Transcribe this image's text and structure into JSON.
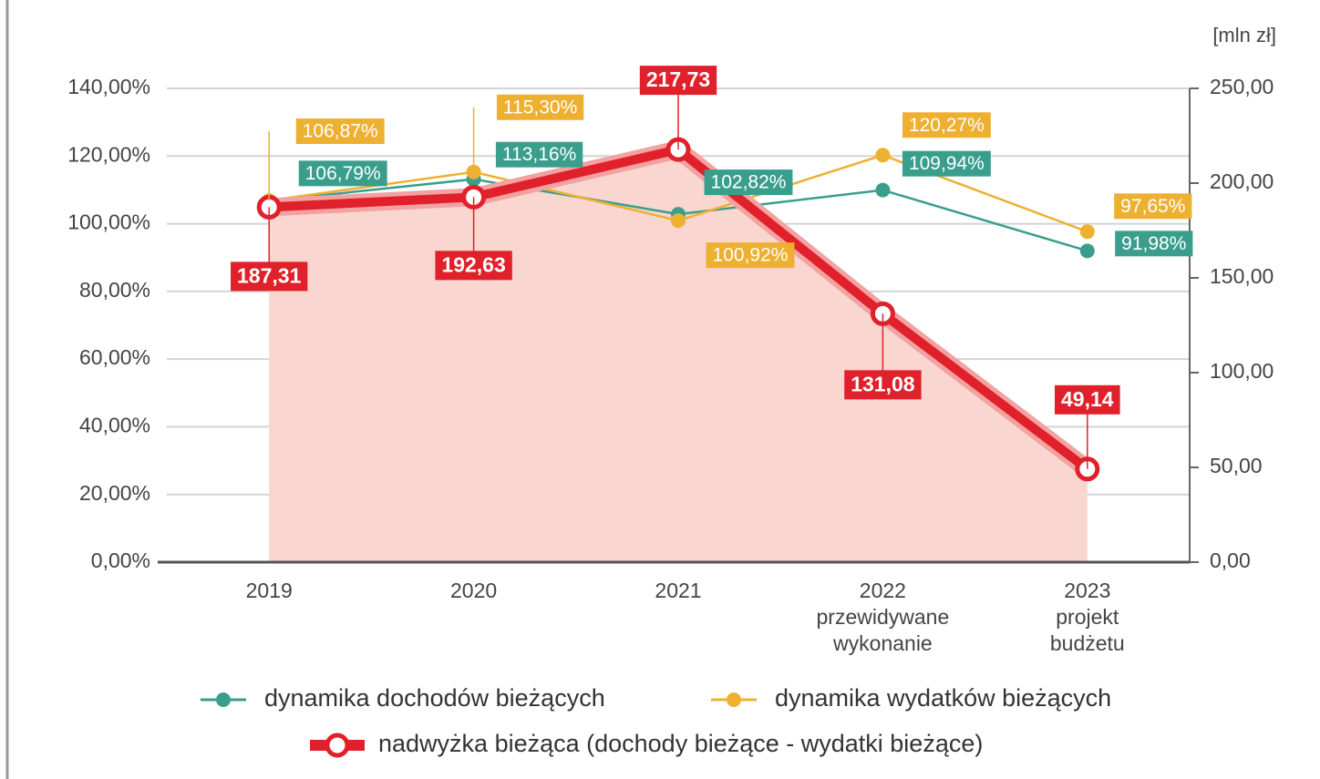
{
  "chart_data": {
    "type": "line",
    "y2label": "[mln zł]",
    "categories": [
      "2019",
      "2020",
      "2021",
      "2022\nprzewidywane\nwykonanie",
      "2023\nprojekt\nbudżetu"
    ],
    "ylim": [
      0,
      140
    ],
    "yticks": [
      {
        "value": 0,
        "label": "0,00%"
      },
      {
        "value": 20,
        "label": "20,00%"
      },
      {
        "value": 40,
        "label": "40,00%"
      },
      {
        "value": 60,
        "label": "60,00%"
      },
      {
        "value": 80,
        "label": "80,00%"
      },
      {
        "value": 100,
        "label": "100,00%"
      },
      {
        "value": 120,
        "label": "120,00%"
      },
      {
        "value": 140,
        "label": "140,00%"
      }
    ],
    "y2lim": [
      0,
      250
    ],
    "y2ticks": [
      {
        "value": 0,
        "label": "0,00"
      },
      {
        "value": 50,
        "label": "50,00"
      },
      {
        "value": 100,
        "label": "100,00"
      },
      {
        "value": 150,
        "label": "150,00"
      },
      {
        "value": 200,
        "label": "200,00"
      },
      {
        "value": 250,
        "label": "250,00"
      }
    ],
    "grid": true,
    "series": [
      {
        "name": "dynamika dochodów bieżących",
        "color": "#3a9e8d",
        "values": [
          106.79,
          113.16,
          102.82,
          109.94,
          91.98
        ],
        "value_labels": [
          "106,79%",
          "113,16%",
          "102,82%",
          "109,94%",
          "91,98%"
        ]
      },
      {
        "name": "dynamika wydatków bieżących",
        "color": "#eeb030",
        "values": [
          106.87,
          115.3,
          100.92,
          120.27,
          97.65
        ],
        "value_labels": [
          "106,87%",
          "115,30%",
          "100,92%",
          "120,27%",
          "97,65%"
        ]
      },
      {
        "name": "nadwyżka bieżąca (dochody bieżące - wydatki bieżące)",
        "color": "#e0202a",
        "axis": "y2",
        "area": true,
        "values": [
          187.31,
          192.63,
          217.73,
          131.08,
          49.14
        ],
        "value_labels": [
          "187,31",
          "192,63",
          "217,73",
          "131,08",
          "49,14"
        ]
      }
    ]
  }
}
